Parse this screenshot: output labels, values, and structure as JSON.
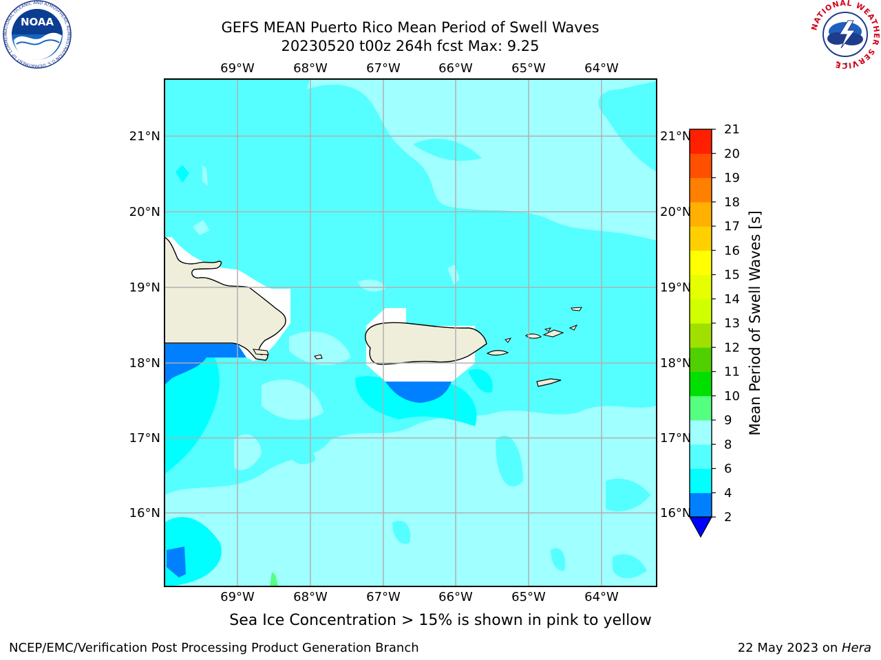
{
  "title": {
    "line1": "GEFS MEAN Puerto Rico Mean Period of Swell Waves",
    "line2": "20230520 t00z 264h fcst   Max: 9.25"
  },
  "map": {
    "lon_labels": [
      "69°W",
      "68°W",
      "67°W",
      "66°W",
      "65°W",
      "64°W"
    ],
    "lat_labels": [
      "21°N",
      "20°N",
      "19°N",
      "18°N",
      "17°N",
      "16°N"
    ],
    "extent": {
      "lon": [
        -70,
        -63.25
      ],
      "lat": [
        15,
        21.75
      ]
    },
    "grid": true,
    "note": "Sea Ice Concentration > 15% is shown in pink to yellow"
  },
  "colorbar": {
    "label": "Mean Period of Swell Waves [s]",
    "ticks": [
      "2",
      "4",
      "6",
      "8",
      "9",
      "10",
      "11",
      "12",
      "13",
      "14",
      "15",
      "16",
      "17",
      "18",
      "19",
      "20",
      "21"
    ],
    "colors": [
      "#0330ff",
      "#0080ff",
      "#00ffff",
      "#55ffff",
      "#a0ffff",
      "#55ff7f",
      "#00e000",
      "#50d000",
      "#a0e000",
      "#d0ff00",
      "#e6ff00",
      "#ffff00",
      "#ffd000",
      "#ffb000",
      "#ff8000",
      "#ff5000",
      "#ff2000",
      "#ff0000"
    ],
    "extend_color": "#0000ff"
  },
  "logos": {
    "noaa": {
      "text": "NOAA",
      "ring_text": "NATIONAL OCEANIC AND ATMOSPHERIC ADMINISTRATION U.S. DEPARTMENT OF COMMERCE"
    },
    "nws": {
      "ring_text": "NATIONAL WEATHER SERVICE"
    }
  },
  "footer": {
    "left": "NCEP/EMC/Verification Post Processing Product Generation Branch",
    "date": "22 May 2023 on ",
    "machine": "Hera"
  }
}
